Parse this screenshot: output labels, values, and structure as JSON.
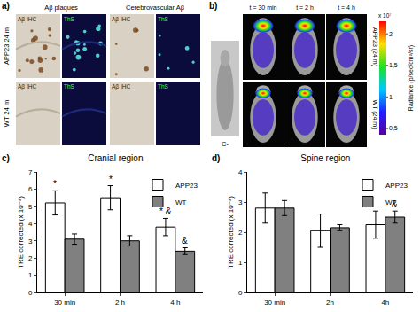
{
  "panel_labels": [
    "a)",
    "b)",
    "c)",
    "d)"
  ],
  "panel_a": {
    "columns": [
      {
        "title": "Aβ plaques",
        "tiles": [
          "Aβ IHC",
          "ThS"
        ]
      },
      {
        "title": "Cerebrovascular Aβ",
        "tiles": [
          "Aβ IHC",
          "ThS"
        ]
      }
    ],
    "rows": [
      "APP23 24 m",
      "WT 24 m"
    ]
  },
  "panel_b": {
    "control": "C-",
    "times": [
      "t = 30 min",
      "t = 2 h",
      "t = 4 h"
    ],
    "rows": [
      "APP23 (24 m)",
      "WT (24 m)"
    ],
    "colorbar": {
      "title": "Radiance (p/sec/cm²/sr)",
      "multiplier": "x 10⁷",
      "range": [
        0.4,
        2.2
      ],
      "ticks": [
        {
          "value": 0.5,
          "label": "0,5"
        },
        {
          "value": 1,
          "label": "1"
        },
        {
          "value": 1.5,
          "label": "1,5"
        },
        {
          "value": 2,
          "label": "2"
        }
      ]
    }
  },
  "chart_data": [
    {
      "type": "bar",
      "title": "Cranial region",
      "y_label": "TRE corrected (x 10⁻⁴)",
      "categories": [
        "30 min",
        "2 h",
        "4 h"
      ],
      "series": [
        {
          "name": "APP23",
          "color": "#ffffff",
          "values": [
            5.2,
            5.5,
            3.8
          ],
          "errors": [
            0.7,
            0.7,
            0.5
          ]
        },
        {
          "name": "WT",
          "color": "#808080",
          "values": [
            3.1,
            3.0,
            2.4
          ],
          "errors": [
            0.3,
            0.3,
            0.2
          ]
        }
      ],
      "ylim": [
        0,
        7
      ],
      "yticks": [
        0,
        1,
        2,
        3,
        4,
        5,
        6,
        7
      ],
      "grid": false,
      "legend": "top right",
      "annotations": [
        {
          "category": "30 min",
          "series": "APP23",
          "text": "*"
        },
        {
          "category": "2 h",
          "series": "APP23",
          "text": "*"
        },
        {
          "category": "4 h",
          "series": "APP23",
          "text": "* &"
        },
        {
          "category": "4 h",
          "series": "WT",
          "text": "&"
        }
      ]
    },
    {
      "type": "bar",
      "title": "Spine region",
      "y_label": "TRE corrected (x 10⁻⁴)",
      "categories": [
        "30 min",
        "2h",
        "4h"
      ],
      "series": [
        {
          "name": "APP23",
          "color": "#ffffff",
          "values": [
            2.8,
            2.05,
            2.25
          ],
          "errors": [
            0.5,
            0.55,
            0.45
          ]
        },
        {
          "name": "WT",
          "color": "#808080",
          "values": [
            2.8,
            2.15,
            2.5
          ],
          "errors": [
            0.25,
            0.1,
            0.2
          ]
        }
      ],
      "ylim": [
        0,
        4
      ],
      "yticks": [
        0,
        1,
        2,
        3,
        4
      ],
      "grid": false,
      "legend": "top right",
      "annotations": [
        {
          "category": "4h",
          "series": "WT",
          "text": "&"
        }
      ]
    }
  ]
}
